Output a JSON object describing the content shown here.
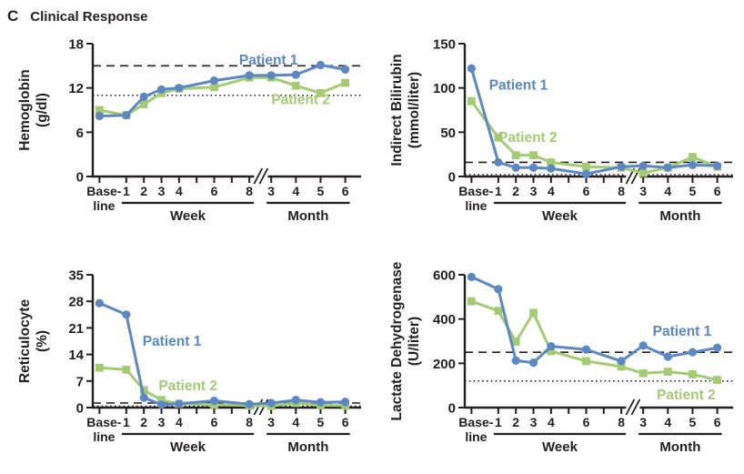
{
  "figure": {
    "panel_letter": "C",
    "title": "Clinical Response"
  },
  "colors": {
    "patient1": "#5b87c5",
    "patient2": "#a3cb72",
    "axis": "#231f20"
  },
  "x_axis": {
    "baseline_label": [
      "Base-",
      "line"
    ],
    "week_tick_labels": [
      "1",
      "2",
      "3",
      "4",
      "6",
      "8"
    ],
    "month_tick_labels": [
      "3",
      "4",
      "5",
      "6"
    ],
    "week_group_label": "Week",
    "month_group_label": "Month"
  },
  "categories": [
    "Baseline",
    "Week 1",
    "Week 2",
    "Week 3",
    "Week 4",
    "Week 6",
    "Week 8",
    "Month 3",
    "Month 4",
    "Month 5",
    "Month 6"
  ],
  "chart_data": [
    {
      "type": "line",
      "title": "Hemoglobin",
      "ylabel": "Hemoglobin",
      "ylabel_unit": "(g/dl)",
      "ylim": [
        0,
        18
      ],
      "yticks": [
        0,
        6,
        12,
        18
      ],
      "ref_dashed": 15,
      "ref_dotted": 11,
      "series": [
        {
          "name": "Patient 1",
          "marker": "circle",
          "color_key": "patient1",
          "label_u": 0.655,
          "label_v": 15.8,
          "values": [
            8.2,
            8.3,
            10.8,
            11.8,
            12.0,
            13.0,
            13.7,
            13.7,
            13.8,
            15.1,
            14.5
          ]
        },
        {
          "name": "Patient 2",
          "marker": "square",
          "color_key": "patient2",
          "label_u": 0.775,
          "label_v": 10.4,
          "values": [
            9.0,
            8.3,
            9.8,
            11.3,
            11.9,
            12.1,
            13.4,
            13.4,
            12.3,
            11.3,
            12.7
          ]
        }
      ]
    },
    {
      "type": "line",
      "title": "Indirect Bilirubin",
      "ylabel": "Indirect Bilirubin",
      "ylabel_unit": "(mmol/liter)",
      "ylim": [
        0,
        150
      ],
      "yticks": [
        0,
        50,
        100,
        150
      ],
      "ref_dashed": 16,
      "ref_dotted": 2,
      "series": [
        {
          "name": "Patient 1",
          "marker": "circle",
          "color_key": "patient1",
          "label_u": 0.2,
          "label_v": 103,
          "values": [
            122,
            16,
            10,
            10,
            9,
            3,
            11,
            12,
            10,
            13,
            12
          ]
        },
        {
          "name": "Patient 2",
          "marker": "square",
          "color_key": "patient2",
          "label_u": 0.235,
          "label_v": 44,
          "values": [
            85,
            44,
            24,
            24,
            16,
            11,
            10,
            4,
            10,
            22,
            11
          ]
        }
      ]
    },
    {
      "type": "line",
      "title": "Reticulocyte",
      "ylabel": "Reticulocyte",
      "ylabel_unit": "(%)",
      "ylim": [
        0,
        35
      ],
      "yticks": [
        0,
        7,
        14,
        21,
        28,
        35
      ],
      "ref_dashed": 1.2,
      "ref_dotted": 0.4,
      "series": [
        {
          "name": "Patient 1",
          "marker": "circle",
          "color_key": "patient1",
          "label_u": 0.295,
          "label_v": 17.5,
          "values": [
            27.5,
            24.5,
            2.6,
            0.8,
            1.0,
            1.8,
            0.9,
            1.2,
            2.0,
            1.4,
            1.5
          ]
        },
        {
          "name": "Patient 2",
          "marker": "square",
          "color_key": "patient2",
          "label_u": 0.355,
          "label_v": 5.8,
          "values": [
            10.5,
            10.0,
            4.6,
            2.0,
            1.0,
            0.8,
            0.5,
            0.4,
            1.2,
            0.6,
            0.5
          ]
        }
      ]
    },
    {
      "type": "line",
      "title": "Lactate Dehydrogenase",
      "ylabel": "Lactate Dehydrogenase",
      "ylabel_unit": "(U/liter)",
      "ylim": [
        0,
        600
      ],
      "yticks": [
        0,
        200,
        400,
        600
      ],
      "ref_dashed": 250,
      "ref_dotted": 120,
      "series": [
        {
          "name": "Patient 1",
          "marker": "circle",
          "color_key": "patient1",
          "label_u": 0.81,
          "label_v": 345,
          "values": [
            590,
            535,
            212,
            203,
            277,
            262,
            210,
            280,
            230,
            250,
            270
          ]
        },
        {
          "name": "Patient 2",
          "marker": "square",
          "color_key": "patient2",
          "label_u": 0.825,
          "label_v": 58,
          "values": [
            480,
            437,
            298,
            428,
            255,
            210,
            185,
            155,
            162,
            150,
            125
          ]
        }
      ]
    }
  ]
}
